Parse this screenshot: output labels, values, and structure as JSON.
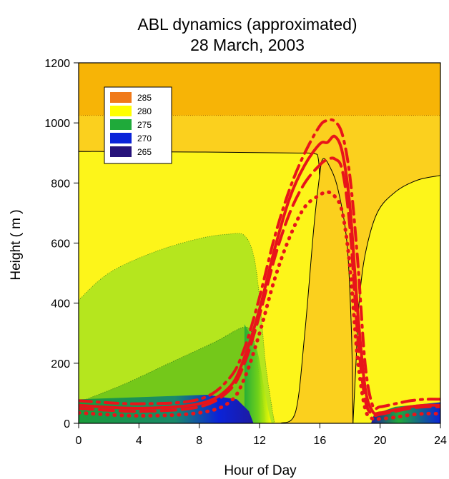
{
  "chart_data": {
    "type": "contour",
    "title": "ABL dynamics (approximated)",
    "subtitle": "28 March, 2003",
    "xlabel": "Hour of Day",
    "ylabel": "Height ( m )",
    "xlim": [
      0,
      24
    ],
    "ylim": [
      0,
      1200
    ],
    "xticks": [
      "0",
      "4",
      "8",
      "12",
      "16",
      "20",
      "24"
    ],
    "yticks": [
      "0",
      "200",
      "400",
      "600",
      "800",
      "1000",
      "1200"
    ],
    "legend": {
      "placement": "top-left",
      "entries": [
        {
          "label": "285",
          "color": "#f07a1a"
        },
        {
          "label": "280",
          "color": "#ffff00"
        },
        {
          "label": "275",
          "color": "#1faa3a"
        },
        {
          "label": "270",
          "color": "#0a23d9"
        },
        {
          "label": "265",
          "color": "#26127a"
        }
      ]
    },
    "series": [
      {
        "style": "dash-dot",
        "color": "#e8141a",
        "x": [
          0,
          4,
          8,
          10,
          11,
          12,
          13,
          14,
          15,
          16,
          16.5,
          17,
          17.5,
          18,
          18.5,
          19,
          19.5,
          20,
          21,
          22,
          23,
          24
        ],
        "y": [
          75,
          65,
          80,
          150,
          250,
          420,
          620,
          780,
          900,
          990,
          1008,
          1005,
          960,
          820,
          550,
          200,
          60,
          55,
          65,
          75,
          80,
          80
        ]
      },
      {
        "style": "solid",
        "color": "#e8141a",
        "x": [
          0,
          4,
          8,
          10,
          11,
          12,
          13,
          14,
          15,
          16,
          16.5,
          17,
          17.5,
          18,
          18.5,
          19,
          19.5,
          20,
          21,
          22,
          23,
          24
        ],
        "y": [
          60,
          50,
          65,
          120,
          220,
          380,
          580,
          750,
          860,
          930,
          935,
          955,
          900,
          720,
          380,
          120,
          40,
          35,
          45,
          55,
          60,
          60
        ]
      },
      {
        "style": "dashed",
        "color": "#e8141a",
        "x": [
          0,
          4,
          8,
          10,
          11,
          12,
          13,
          14,
          15,
          16,
          16.5,
          17,
          17.5,
          18,
          18.5,
          19,
          19.5,
          20,
          21,
          22,
          23,
          24
        ],
        "y": [
          50,
          40,
          55,
          110,
          200,
          360,
          550,
          700,
          800,
          860,
          878,
          880,
          840,
          650,
          300,
          80,
          30,
          30,
          40,
          50,
          55,
          55
        ]
      },
      {
        "style": "dotted",
        "color": "#e8141a",
        "x": [
          0,
          4,
          8,
          10,
          11,
          12,
          13,
          14,
          15,
          16,
          16.5,
          17,
          17.5,
          18,
          18.5,
          19,
          19.5,
          20,
          21,
          22,
          23,
          24
        ],
        "y": [
          35,
          25,
          35,
          70,
          150,
          300,
          480,
          620,
          720,
          760,
          770,
          755,
          700,
          520,
          220,
          50,
          15,
          15,
          20,
          28,
          32,
          32
        ]
      }
    ]
  }
}
